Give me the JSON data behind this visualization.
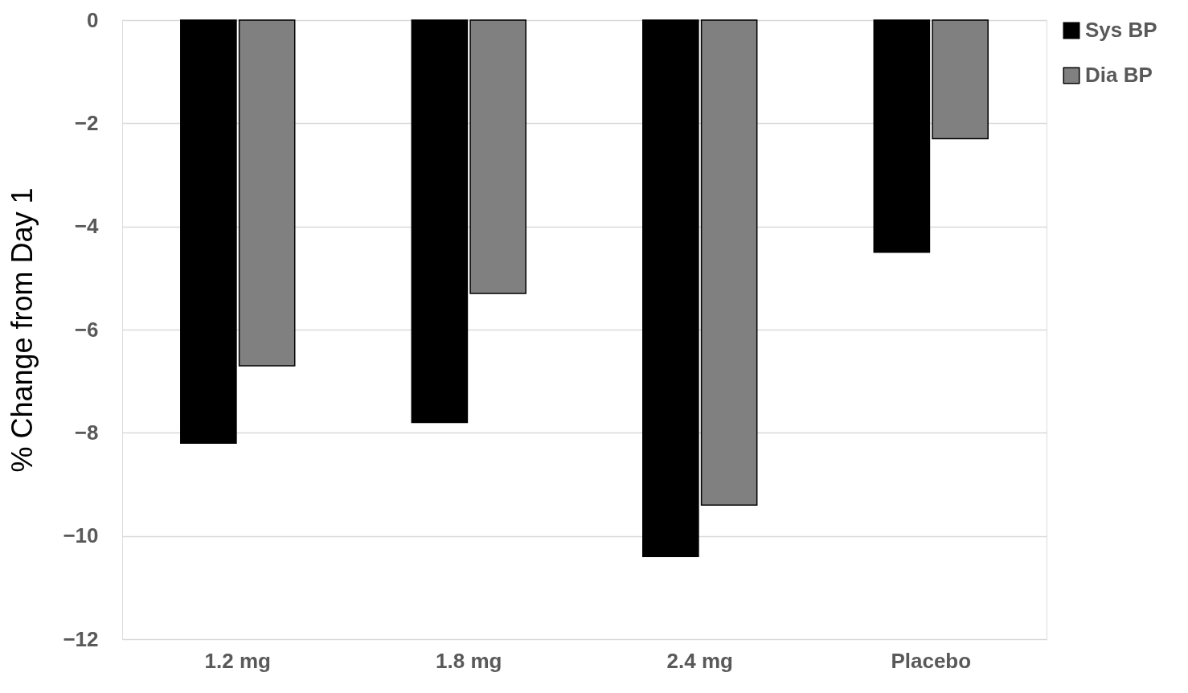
{
  "chart_data": {
    "type": "bar",
    "ylabel": "% Change from Day 1",
    "categories": [
      "1.2 mg",
      "1.8 mg",
      "2.4 mg",
      "Placebo"
    ],
    "series": [
      {
        "name": "Sys BP",
        "color": "#000000",
        "values": [
          -8.2,
          -7.8,
          -10.4,
          -4.5
        ]
      },
      {
        "name": "Dia BP",
        "color": "#808080",
        "values": [
          -6.7,
          -5.3,
          -9.4,
          -2.3
        ]
      }
    ],
    "ylim": [
      -12,
      0
    ],
    "yticks": [
      -12,
      -10,
      -8,
      -6,
      -4,
      -2,
      0
    ],
    "grid": "y",
    "legend": "right"
  }
}
